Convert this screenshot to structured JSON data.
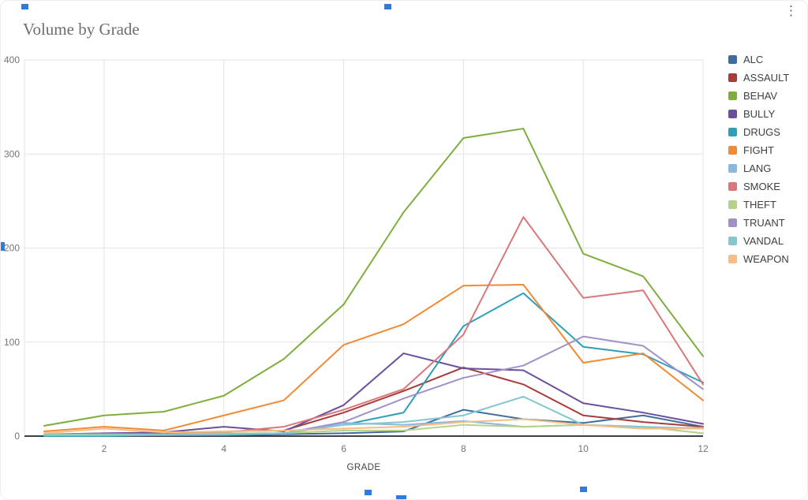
{
  "title": "Volume by Grade",
  "menu": {
    "more_options_icon": "⋮"
  },
  "chart_data": {
    "type": "line",
    "title": "Volume by Grade",
    "xlabel": "GRADE",
    "ylabel": "",
    "x": [
      1,
      2,
      3,
      4,
      5,
      6,
      7,
      8,
      9,
      10,
      11,
      12
    ],
    "xticks": [
      2,
      4,
      6,
      8,
      10,
      12
    ],
    "yticks": [
      0,
      100,
      200,
      300,
      400
    ],
    "ylim": [
      0,
      400
    ],
    "grid": true,
    "legend_position": "right",
    "series": [
      {
        "name": "ALC",
        "color": "#3f6e9e",
        "values": [
          1,
          1,
          1,
          1,
          2,
          3,
          5,
          28,
          18,
          14,
          22,
          10
        ]
      },
      {
        "name": "ASSAULT",
        "color": "#a83c39",
        "values": [
          2,
          2,
          3,
          5,
          6,
          25,
          48,
          73,
          55,
          22,
          15,
          10
        ]
      },
      {
        "name": "BEHAV",
        "color": "#7fae3e",
        "values": [
          11,
          22,
          26,
          43,
          82,
          140,
          238,
          317,
          327,
          194,
          170,
          85
        ]
      },
      {
        "name": "BULLY",
        "color": "#6a4f9e",
        "values": [
          2,
          3,
          4,
          10,
          5,
          33,
          88,
          72,
          70,
          35,
          25,
          13
        ]
      },
      {
        "name": "DRUGS",
        "color": "#2e9fb5",
        "values": [
          0,
          0,
          1,
          1,
          3,
          12,
          25,
          117,
          152,
          95,
          87,
          57
        ]
      },
      {
        "name": "FIGHT",
        "color": "#f18a34",
        "values": [
          5,
          10,
          6,
          22,
          38,
          97,
          119,
          160,
          161,
          78,
          88,
          38
        ]
      },
      {
        "name": "LANG",
        "color": "#8ab8dc",
        "values": [
          1,
          1,
          1,
          2,
          3,
          14,
          12,
          16,
          10,
          12,
          8,
          9
        ]
      },
      {
        "name": "SMOKE",
        "color": "#d9777a",
        "values": [
          2,
          1,
          2,
          4,
          10,
          28,
          50,
          108,
          233,
          147,
          155,
          55
        ]
      },
      {
        "name": "THEFT",
        "color": "#b5d289",
        "values": [
          2,
          2,
          2,
          3,
          3,
          6,
          6,
          12,
          10,
          12,
          10,
          3
        ]
      },
      {
        "name": "TRUANT",
        "color": "#a291c9",
        "values": [
          1,
          1,
          1,
          2,
          3,
          15,
          40,
          62,
          75,
          106,
          96,
          50
        ]
      },
      {
        "name": "VANDAL",
        "color": "#85c6cf",
        "values": [
          1,
          1,
          2,
          2,
          3,
          12,
          15,
          22,
          42,
          12,
          10,
          8
        ]
      },
      {
        "name": "WEAPON",
        "color": "#f7bd84",
        "values": [
          3,
          8,
          4,
          5,
          6,
          8,
          10,
          15,
          18,
          12,
          8,
          8
        ]
      }
    ]
  }
}
